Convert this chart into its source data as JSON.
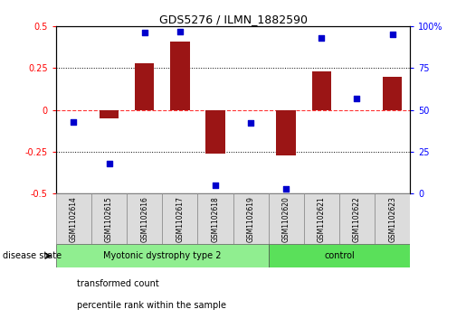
{
  "title": "GDS5276 / ILMN_1882590",
  "samples": [
    "GSM1102614",
    "GSM1102615",
    "GSM1102616",
    "GSM1102617",
    "GSM1102618",
    "GSM1102619",
    "GSM1102620",
    "GSM1102621",
    "GSM1102622",
    "GSM1102623"
  ],
  "transformed_count": [
    0.0,
    -0.05,
    0.28,
    0.41,
    -0.26,
    0.0,
    -0.27,
    0.23,
    0.0,
    0.2
  ],
  "percentile_rank": [
    43,
    18,
    96,
    97,
    5,
    42,
    3,
    93,
    57,
    95
  ],
  "disease_groups": [
    {
      "label": "Myotonic dystrophy type 2",
      "start": 0,
      "end": 6,
      "color": "#90EE90"
    },
    {
      "label": "control",
      "start": 6,
      "end": 10,
      "color": "#5AE05A"
    }
  ],
  "bar_color": "#9B1515",
  "dot_color": "#0000CD",
  "ylim_left": [
    -0.5,
    0.5
  ],
  "ylim_right": [
    0,
    100
  ],
  "yticks_left": [
    -0.5,
    -0.25,
    0,
    0.25,
    0.5
  ],
  "yticks_right": [
    0,
    25,
    50,
    75,
    100
  ],
  "ytick_labels_left": [
    "-0.5",
    "-0.25",
    "0",
    "0.25",
    "0.5"
  ],
  "ytick_labels_right": [
    "0",
    "25",
    "50",
    "75",
    "100%"
  ],
  "hlines": [
    0.25,
    -0.25
  ],
  "bg_color": "#DCDCDC",
  "legend": [
    {
      "label": "transformed count",
      "color": "#9B1515"
    },
    {
      "label": "percentile rank within the sample",
      "color": "#0000CD"
    }
  ]
}
